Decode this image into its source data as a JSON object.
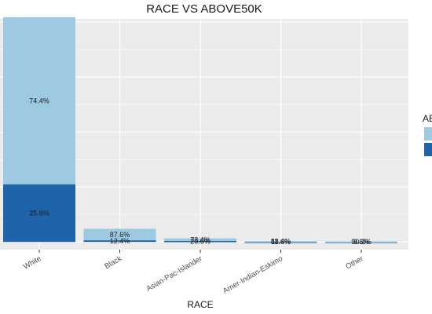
{
  "chart_data": {
    "type": "bar",
    "stacked": true,
    "title": "RACE VS ABOVE50K",
    "xlabel": "RACE",
    "ylabel": "",
    "categories": [
      "White",
      "Black",
      "Asian-Pac-Islander",
      "Amer-Indian-Eskimo",
      "Other"
    ],
    "series": [
      {
        "values": [
          3040,
          210,
          48,
          12,
          9
        ],
        "labels": [
          "74.4%",
          "87.6%",
          "73.4%",
          "88.4%",
          "90.2%"
        ],
        "color": "#9ecae1"
      },
      {
        "values": [
          1050,
          30,
          17,
          1.5,
          1
        ],
        "labels": [
          "25.6%",
          "12.4%",
          "26.6%",
          "11.6%",
          "9.8%"
        ],
        "color": "#1f64a8"
      }
    ],
    "ylim": [
      -140,
      4060
    ],
    "grid": true,
    "legend": {
      "title": "AB",
      "position": "right"
    }
  }
}
